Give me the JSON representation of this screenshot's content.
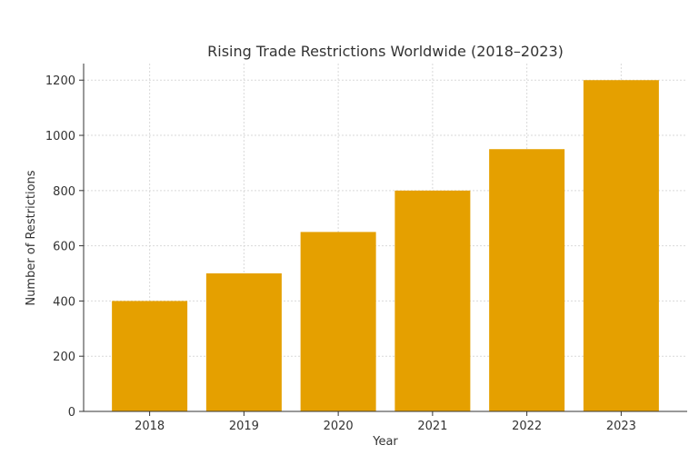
{
  "chart_data": {
    "type": "bar",
    "title": "Rising Trade Restrictions Worldwide (2018–2023)",
    "xlabel": "Year",
    "ylabel": "Number of Restrictions",
    "categories": [
      "2018",
      "2019",
      "2020",
      "2021",
      "2022",
      "2023"
    ],
    "values": [
      400,
      500,
      650,
      800,
      950,
      1200
    ],
    "ylim": [
      0,
      1260
    ],
    "yticks": [
      0,
      200,
      400,
      600,
      800,
      1000,
      1200
    ],
    "ytick_labels": [
      "0",
      "200",
      "400",
      "600",
      "800",
      "1000",
      "1200"
    ],
    "grid": true,
    "colors": {
      "bar": "#E5A000",
      "grid": "#d9d9d9",
      "axis": "#333333"
    }
  }
}
